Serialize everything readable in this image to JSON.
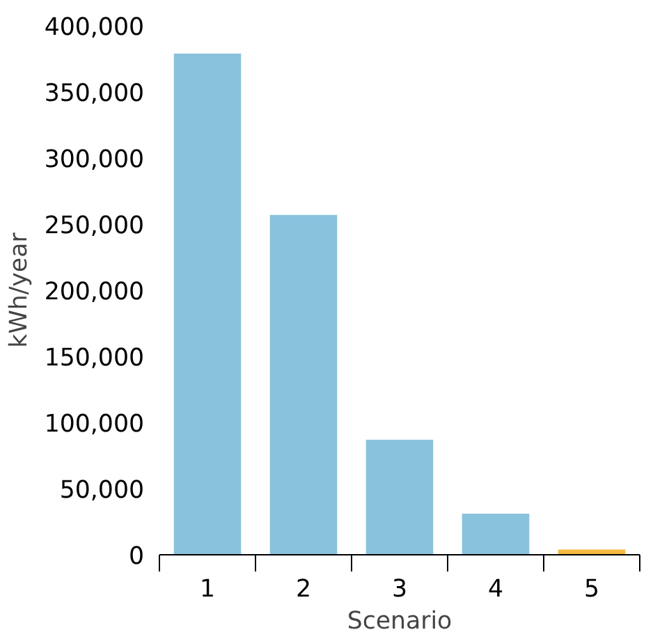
{
  "chart_data": {
    "type": "bar",
    "xlabel": "Scenario",
    "ylabel": "kWh/year",
    "categories": [
      "1",
      "2",
      "3",
      "4",
      "5"
    ],
    "values": [
      379000,
      257000,
      87000,
      31000,
      4000
    ],
    "colors": [
      "#89c2dd",
      "#89c2dd",
      "#89c2dd",
      "#89c2dd",
      "#f5b942"
    ],
    "ylim": [
      0,
      400000
    ],
    "yticks": [
      {
        "value": 0,
        "label": "0"
      },
      {
        "value": 50000,
        "label": "50,000"
      },
      {
        "value": 100000,
        "label": "100,000"
      },
      {
        "value": 150000,
        "label": "150,000"
      },
      {
        "value": 200000,
        "label": "200,000"
      },
      {
        "value": 250000,
        "label": "250,000"
      },
      {
        "value": 300000,
        "label": "300,000"
      },
      {
        "value": 350000,
        "label": "350,000"
      },
      {
        "value": 400000,
        "label": "400,000"
      }
    ],
    "grid": false
  }
}
